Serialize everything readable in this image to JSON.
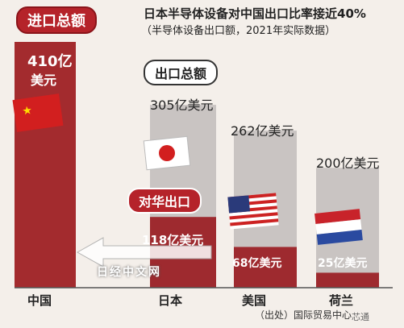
{
  "header": {
    "title": "日本半导体设备对中国出口比率接近40%",
    "subtitle": "（半导体设备出口额，2021年实际数据）",
    "import_total_label": "进口总额",
    "export_total_label": "出口总额",
    "to_china_label": "对华出口"
  },
  "chart_data": {
    "type": "bar",
    "title": "日本半导体设备对中国出口比率接近40%",
    "subtitle": "（半导体设备出口额，2021年实际数据）",
    "categories": [
      "中国",
      "日本",
      "美国",
      "荷兰"
    ],
    "series": [
      {
        "name": "出口总额",
        "values": [
          410,
          305,
          262,
          200
        ]
      },
      {
        "name": "对华出口",
        "values": [
          null,
          118,
          68,
          25
        ]
      }
    ],
    "value_labels": {
      "china_total": [
        "410亿",
        "美元"
      ],
      "japan_total": "305亿美元",
      "us_total": "262亿美元",
      "netherlands_total": "200亿美元",
      "japan_china": "118亿美元",
      "us_china": "68亿美元",
      "netherlands_china": "25亿美元"
    },
    "ylim": [
      0,
      440
    ],
    "colors": {
      "total": "#c9c4c2",
      "china_bar": "#a32b2e",
      "to_china": "#9e2a2f",
      "accent": "#b5232a"
    }
  },
  "footer": {
    "source": "（出处）国际贸易中心",
    "watermark": "日经中文网",
    "wechat_mark": "芯通"
  },
  "flags": [
    "china-flag-icon",
    "japan-flag-icon",
    "us-flag-icon",
    "netherlands-flag-icon"
  ]
}
